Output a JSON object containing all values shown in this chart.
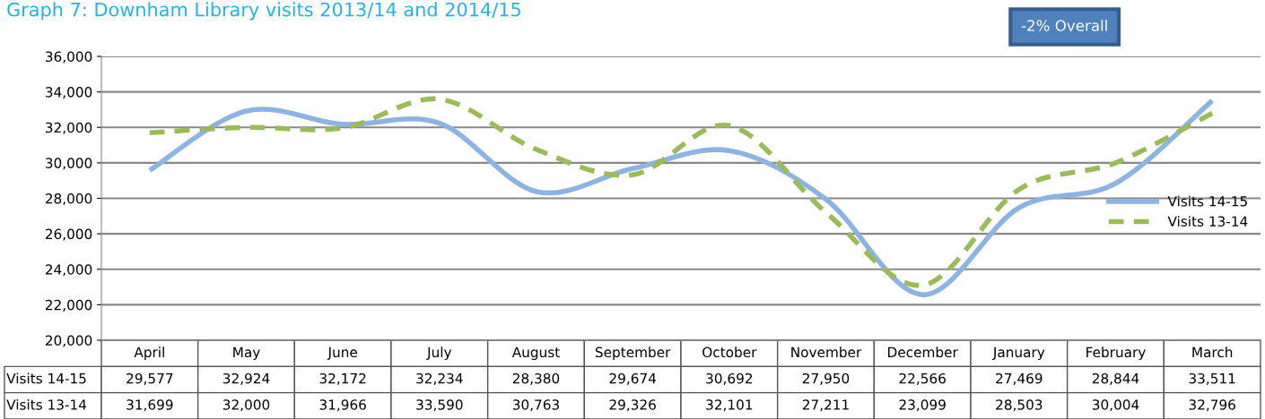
{
  "chart_data": {
    "type": "line",
    "title": "Graph 7: Downham Library visits 2013/14 and 2014/15",
    "categories": [
      "April",
      "May",
      "June",
      "July",
      "August",
      "September",
      "October",
      "November",
      "December",
      "January",
      "February",
      "March"
    ],
    "series": [
      {
        "name": "Visits 14-15",
        "color": "#8db3e2",
        "line_style": "solid",
        "values": [
          29577,
          32924,
          32172,
          32234,
          28380,
          29674,
          30692,
          27950,
          22566,
          27469,
          28844,
          33511
        ],
        "value_labels": [
          "29,577",
          "32,924",
          "32,172",
          "32,234",
          "28,380",
          "29,674",
          "30,692",
          "27,950",
          "22,566",
          "27,469",
          "28,844",
          "33,511"
        ]
      },
      {
        "name": "Visits 13-14",
        "color": "#9bbb59",
        "line_style": "dashed",
        "values": [
          31699,
          32000,
          31966,
          33590,
          30763,
          29326,
          32101,
          27211,
          23099,
          28503,
          30004,
          32796
        ],
        "value_labels": [
          "31,699",
          "32,000",
          "31,966",
          "33,590",
          "30,763",
          "29,326",
          "32,101",
          "27,211",
          "23,099",
          "28,503",
          "30,004",
          "32,796"
        ]
      }
    ],
    "ylim": [
      20000,
      36000
    ],
    "yticks": [
      {
        "value": 20000,
        "label": "20,000"
      },
      {
        "value": 22000,
        "label": "22,000"
      },
      {
        "value": 24000,
        "label": "24,000"
      },
      {
        "value": 26000,
        "label": "26,000"
      },
      {
        "value": 28000,
        "label": "28,000"
      },
      {
        "value": 30000,
        "label": "30,000"
      },
      {
        "value": 32000,
        "label": "32,000"
      },
      {
        "value": 34000,
        "label": "34,000"
      },
      {
        "value": 36000,
        "label": "36,000"
      }
    ],
    "grid": "y",
    "legend": "right",
    "marker": "none",
    "annotations": [
      "-2% Overall"
    ]
  }
}
